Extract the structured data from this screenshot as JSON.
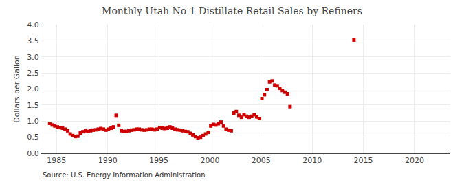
{
  "chart_data": {
    "type": "scatter",
    "title": "Monthly Utah No 1 Distillate Retail Sales by Refiners",
    "ylabel": "Dollars per Gallon",
    "source": "Source: U.S. Energy Information Administration",
    "color": "#CC0000",
    "marker": "square",
    "grid": true,
    "xlim": [
      1983.5,
      2023.5
    ],
    "ylim": [
      0.0,
      4.0
    ],
    "xticks": [
      1985,
      1990,
      1995,
      2000,
      2005,
      2010,
      2015,
      2020
    ],
    "yticks": [
      {
        "value": 0.0,
        "label": "0.0"
      },
      0.5,
      {
        "value": 1.0,
        "label": "1.0"
      },
      1.5,
      {
        "value": 2.0,
        "label": "2.0"
      },
      2.5,
      {
        "value": 3.0,
        "label": "3.0"
      },
      3.5,
      {
        "value": 4.0,
        "label": "4.0"
      }
    ],
    "x": [
      1984.33,
      1984.58,
      1984.83,
      1985.08,
      1985.33,
      1985.58,
      1985.83,
      1986.08,
      1986.33,
      1986.58,
      1986.83,
      1987.08,
      1987.33,
      1987.58,
      1987.83,
      1988.08,
      1988.33,
      1988.58,
      1988.83,
      1989.08,
      1989.33,
      1989.58,
      1989.83,
      1990.08,
      1990.33,
      1990.58,
      1990.83,
      1991.08,
      1991.33,
      1991.58,
      1991.83,
      1992.08,
      1992.33,
      1992.58,
      1992.83,
      1993.08,
      1993.33,
      1993.58,
      1993.83,
      1994.08,
      1994.33,
      1994.58,
      1994.83,
      1995.08,
      1995.33,
      1995.58,
      1995.83,
      1996.08,
      1996.33,
      1996.58,
      1996.83,
      1997.08,
      1997.33,
      1997.58,
      1997.83,
      1998.08,
      1998.33,
      1998.58,
      1998.83,
      1999.08,
      1999.33,
      1999.58,
      1999.83,
      2000.08,
      2000.33,
      2000.58,
      2000.83,
      2001.08,
      2001.33,
      2001.58,
      2001.83,
      2002.08,
      2002.33,
      2002.58,
      2002.83,
      2003.08,
      2003.33,
      2003.58,
      2003.83,
      2004.08,
      2004.33,
      2004.58,
      2004.83,
      2005.08,
      2005.33,
      2005.58,
      2005.83,
      2006.08,
      2006.33,
      2006.58,
      2006.83,
      2007.08,
      2007.33,
      2007.58,
      2007.83,
      2014.08
    ],
    "values": [
      0.93,
      0.88,
      0.85,
      0.82,
      0.8,
      0.78,
      0.75,
      0.7,
      0.6,
      0.55,
      0.52,
      0.53,
      0.63,
      0.67,
      0.7,
      0.68,
      0.7,
      0.72,
      0.73,
      0.75,
      0.77,
      0.75,
      0.72,
      0.75,
      0.78,
      0.82,
      1.18,
      0.87,
      0.7,
      0.68,
      0.68,
      0.7,
      0.72,
      0.73,
      0.75,
      0.75,
      0.73,
      0.72,
      0.73,
      0.75,
      0.75,
      0.73,
      0.75,
      0.8,
      0.78,
      0.77,
      0.78,
      0.82,
      0.78,
      0.75,
      0.73,
      0.72,
      0.7,
      0.68,
      0.67,
      0.62,
      0.57,
      0.52,
      0.48,
      0.5,
      0.55,
      0.6,
      0.65,
      0.85,
      0.9,
      0.88,
      0.92,
      0.97,
      0.85,
      0.75,
      0.72,
      0.7,
      1.25,
      1.3,
      1.18,
      1.12,
      1.2,
      1.15,
      1.12,
      1.15,
      1.2,
      1.13,
      1.08,
      1.7,
      1.82,
      1.98,
      2.22,
      2.25,
      2.12,
      2.1,
      2.02,
      1.95,
      1.9,
      1.85,
      1.45,
      3.52
    ]
  }
}
